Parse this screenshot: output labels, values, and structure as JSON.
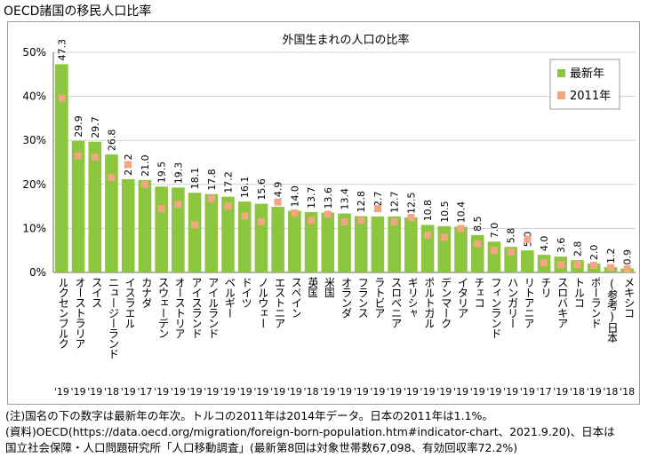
{
  "title": "OECD諸国の移民人口比率",
  "notes": [
    "(注)国名の下の数字は最新年の年次。トルコの2011年は2014年データ。日本の2011年は1.1%。",
    "(資料)OECD(https://data.oecd.org/migration/foreign-born-population.htm#indicator-chart、2021.9.20)、日本は",
    "国立社会保障・人口問題研究所「人口移動調査」(最新第8回は対象世帯数67,098、有効回収率72.2%)"
  ],
  "colors": {
    "bar": "#8cc63f",
    "marker": "#f4a582",
    "frame": "#999999",
    "grid": "#d0d0d0"
  },
  "chart_data": {
    "type": "bar",
    "title": "外国生まれの人口の比率",
    "ylim": [
      0,
      50
    ],
    "yticks": [
      "0%",
      "10%",
      "20%",
      "30%",
      "40%",
      "50%"
    ],
    "legend": {
      "position": "top-right",
      "entries": [
        "最新年",
        "2011年"
      ]
    },
    "categories": [
      "ルクセンブルク",
      "オーストラリア",
      "スイス",
      "ニュージーランド",
      "イスラエル",
      "カナダ",
      "スウェーデン",
      "オーストリア",
      "アイスランド",
      "アイルランド",
      "ベルギー",
      "ドイツ",
      "ノルウェー",
      "エストニア",
      "スペイン",
      "英国",
      "米国",
      "オランダ",
      "フランス",
      "ラトビア",
      "スロベニア",
      "ギリシャ",
      "ポルトガル",
      "デンマーク",
      "イタリア",
      "チェコ",
      "フィンランド",
      "ハンガリー",
      "リトアニア",
      "チリ",
      "スロバキア",
      "トルコ",
      "ポーランド",
      "(参考)日本",
      "メキシコ"
    ],
    "years": [
      "'19",
      "'19",
      "'19",
      "'18",
      "'19",
      "'17",
      "'19",
      "'19",
      "'19",
      "'19",
      "'19",
      "'19",
      "'19",
      "'19",
      "'19",
      "'18",
      "'19",
      "'19",
      "'19",
      "'19",
      "'19",
      "'19",
      "'19",
      "'19",
      "'19",
      "'19",
      "'19",
      "'19",
      "'19",
      "'17",
      "'19",
      "'18",
      "'19",
      "'18",
      "'18"
    ],
    "series": [
      {
        "name": "最新年",
        "values": [
          47.3,
          29.9,
          29.7,
          26.8,
          21.2,
          21.0,
          19.5,
          19.3,
          18.1,
          17.8,
          17.2,
          16.1,
          15.6,
          14.9,
          14.0,
          13.7,
          13.6,
          13.4,
          12.8,
          12.7,
          12.7,
          12.5,
          10.8,
          10.5,
          10.4,
          8.5,
          7.0,
          5.8,
          5.0,
          4.0,
          3.6,
          2.8,
          2.0,
          1.2,
          0.9
        ],
        "labels": [
          "47.3",
          "29.9",
          "29.7",
          "26.8",
          "21.2",
          "21.0",
          "19.5",
          "19.3",
          "18.1",
          "17.8",
          "17.2",
          "16.1",
          "15.6",
          "14.9",
          "14.0",
          "13.7",
          "13.6",
          "13.4",
          "12.8",
          "12.7",
          "12.7",
          "12.5",
          "10.8",
          "10.5",
          "10.4",
          "8.5",
          "7.0",
          "5.8",
          "5.0",
          "4.0",
          "3.6",
          "2.8",
          "2.0",
          "1.2",
          "0.9"
        ]
      },
      {
        "name": "2011年",
        "values": [
          39.6,
          26.5,
          26.2,
          21.5,
          24.5,
          20.0,
          14.5,
          15.5,
          10.8,
          16.8,
          15.0,
          12.8,
          11.5,
          16.0,
          13.5,
          11.8,
          13.2,
          11.5,
          11.8,
          14.5,
          11.5,
          12.5,
          8.5,
          8.0,
          10.0,
          6.5,
          5.0,
          4.6,
          7.5,
          2.2,
          1.8,
          1.8,
          1.6,
          1.1,
          0.8
        ]
      }
    ]
  }
}
